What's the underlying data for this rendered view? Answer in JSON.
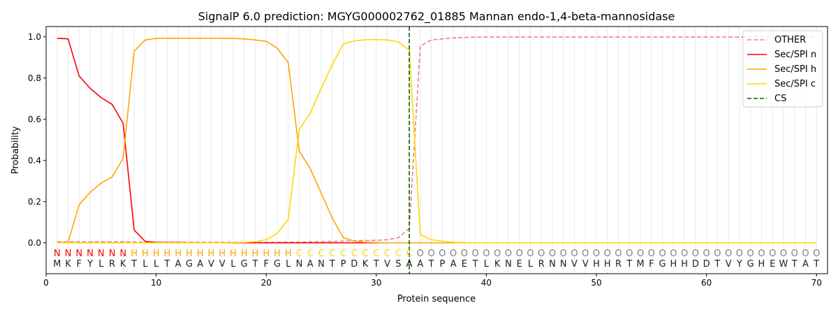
{
  "chart_data": {
    "type": "line",
    "title": "SignalP 6.0 prediction: MGYG000002762_01885 Mannan endo-1,4-beta-mannosidase",
    "xlabel": "Protein sequence",
    "ylabel": "Probability",
    "xlim": [
      0,
      71
    ],
    "ylim": [
      -0.15,
      1.05
    ],
    "xticks": [
      0,
      10,
      20,
      30,
      40,
      50,
      60,
      70
    ],
    "yticks": [
      "0.0",
      "0.2",
      "0.4",
      "0.6",
      "0.8",
      "1.0"
    ],
    "legend_position": "top-right",
    "sequence": [
      "M",
      "K",
      "F",
      "Y",
      "L",
      "R",
      "K",
      "T",
      "L",
      "L",
      "T",
      "A",
      "G",
      "A",
      "V",
      "V",
      "L",
      "G",
      "T",
      "F",
      "G",
      "L",
      "N",
      "A",
      "N",
      "T",
      "P",
      "D",
      "K",
      "T",
      "V",
      "S",
      "A",
      "A",
      "T",
      "P",
      "A",
      "E",
      "T",
      "L",
      "K",
      "N",
      "E",
      "L",
      "R",
      "N",
      "N",
      "V",
      "V",
      "H",
      "H",
      "R",
      "T",
      "M",
      "F",
      "G",
      "H",
      "H",
      "D",
      "D",
      "T",
      "V",
      "Y",
      "G",
      "H",
      "E",
      "W",
      "T",
      "A",
      "T"
    ],
    "labels": [
      "N",
      "N",
      "N",
      "N",
      "N",
      "N",
      "N",
      "H",
      "H",
      "H",
      "H",
      "H",
      "H",
      "H",
      "H",
      "H",
      "H",
      "H",
      "H",
      "H",
      "H",
      "H",
      "C",
      "C",
      "C",
      "C",
      "C",
      "C",
      "C",
      "C",
      "C",
      "C",
      "C",
      "O",
      "O",
      "O",
      "O",
      "O",
      "O",
      "O",
      "O",
      "O",
      "O",
      "O",
      "O",
      "O",
      "O",
      "O",
      "O",
      "O",
      "O",
      "O",
      "O",
      "O",
      "O",
      "O",
      "O",
      "O",
      "O",
      "O",
      "O",
      "O",
      "O",
      "O",
      "O",
      "O",
      "O",
      "O",
      "O",
      "O"
    ],
    "label_colors": {
      "N": "#ff0000",
      "H": "#ffa500",
      "C": "#ffd700",
      "O": "#808080"
    },
    "cs_position": 33,
    "series": [
      {
        "name": "OTHER",
        "color": "#f08080",
        "dash": true,
        "values": [
          0.005,
          0.005,
          0.005,
          0.005,
          0.005,
          0.005,
          0.005,
          0.004,
          0.003,
          0.003,
          0.003,
          0.003,
          0.003,
          0.003,
          0.003,
          0.003,
          0.003,
          0.003,
          0.003,
          0.003,
          0.003,
          0.004,
          0.004,
          0.005,
          0.006,
          0.007,
          0.008,
          0.01,
          0.011,
          0.012,
          0.015,
          0.025,
          0.07,
          0.955,
          0.985,
          0.99,
          0.995,
          0.997,
          0.998,
          0.999,
          0.999,
          0.999,
          0.999,
          0.999,
          0.999,
          0.999,
          0.999,
          0.999,
          0.999,
          0.999,
          0.999,
          0.999,
          0.999,
          0.999,
          0.999,
          0.999,
          0.999,
          0.999,
          0.999,
          0.999,
          0.999,
          0.999,
          0.999,
          0.999,
          0.999,
          0.999,
          0.999,
          0.999,
          0.999,
          0.999
        ]
      },
      {
        "name": "Sec/SPI n",
        "color": "#ff0000",
        "dash": false,
        "values": [
          0.993,
          0.99,
          0.81,
          0.75,
          0.705,
          0.672,
          0.58,
          0.062,
          0.007,
          0.002,
          0.001,
          0.001,
          0,
          0,
          0,
          0,
          0,
          0,
          0,
          0,
          0,
          0,
          0,
          0,
          0,
          0,
          0,
          0,
          0,
          0,
          0,
          0,
          0,
          0,
          0,
          0,
          0,
          0,
          0,
          0,
          0,
          0,
          0,
          0,
          0,
          0,
          0,
          0,
          0,
          0,
          0,
          0,
          0,
          0,
          0,
          0,
          0,
          0,
          0,
          0,
          0,
          0,
          0,
          0,
          0,
          0,
          0,
          0,
          0,
          0
        ]
      },
      {
        "name": "Sec/SPI h",
        "color": "#ffa500",
        "dash": false,
        "values": [
          0,
          0.003,
          0.185,
          0.245,
          0.29,
          0.32,
          0.41,
          0.93,
          0.985,
          0.992,
          0.993,
          0.993,
          0.993,
          0.993,
          0.993,
          0.993,
          0.992,
          0.99,
          0.985,
          0.978,
          0.945,
          0.875,
          0.445,
          0.36,
          0.24,
          0.12,
          0.025,
          0.008,
          0.003,
          0.001,
          0,
          0,
          0,
          0,
          0,
          0,
          0,
          0,
          0,
          0,
          0,
          0,
          0,
          0,
          0,
          0,
          0,
          0,
          0,
          0,
          0,
          0,
          0,
          0,
          0,
          0,
          0,
          0,
          0,
          0,
          0,
          0,
          0,
          0,
          0,
          0,
          0,
          0,
          0,
          0
        ]
      },
      {
        "name": "Sec/SPI c",
        "color": "#ffd700",
        "dash": false,
        "values": [
          0,
          0,
          0,
          0,
          0,
          0,
          0,
          0,
          0,
          0,
          0,
          0,
          0,
          0,
          0,
          0,
          0.001,
          0.002,
          0.006,
          0.015,
          0.045,
          0.115,
          0.55,
          0.63,
          0.75,
          0.865,
          0.965,
          0.98,
          0.986,
          0.987,
          0.985,
          0.975,
          0.935,
          0.04,
          0.015,
          0.008,
          0.003,
          0.001,
          0,
          0,
          0,
          0,
          0,
          0,
          0,
          0,
          0,
          0,
          0,
          0,
          0,
          0,
          0,
          0,
          0,
          0,
          0,
          0,
          0,
          0,
          0,
          0,
          0,
          0,
          0,
          0,
          0,
          0,
          0,
          0
        ]
      }
    ],
    "cs_legend": "CS"
  }
}
